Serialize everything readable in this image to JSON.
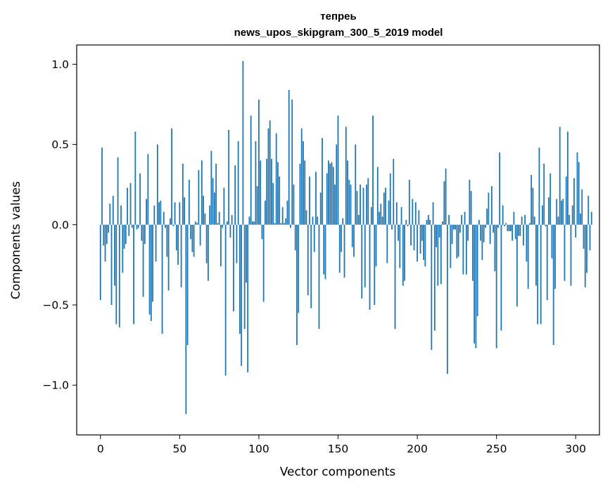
{
  "chart_data": {
    "type": "bar",
    "title_line1": "тепрeь",
    "title_line2": "news_upos_skipgram_300_5_2019 model",
    "xlabel": "Vector components",
    "ylabel": "Components values",
    "xlim": [
      -15,
      315
    ],
    "ylim": [
      -1.31,
      1.12
    ],
    "x_ticks": [
      0,
      50,
      100,
      150,
      200,
      250,
      300
    ],
    "y_ticks": [
      1.0,
      0.5,
      0.0,
      -0.5,
      -1.0
    ],
    "x_tick_labels": [
      "0",
      "50",
      "100",
      "150",
      "200",
      "250",
      "300"
    ],
    "y_tick_labels": [
      "1.0",
      "0.5",
      "0.0",
      "−0.5",
      "−1.0"
    ],
    "bar_color": "#1f77b4",
    "grid": false,
    "values": [
      -0.47,
      0.48,
      -0.13,
      -0.23,
      -0.12,
      -0.05,
      0.13,
      -0.5,
      0.18,
      -0.38,
      -0.62,
      0.42,
      -0.64,
      0.12,
      -0.3,
      -0.15,
      -0.12,
      0.23,
      -0.07,
      0.26,
      -0.02,
      -0.62,
      0.58,
      -0.03,
      -0.02,
      0.32,
      -0.1,
      -0.45,
      -0.12,
      0.16,
      0.44,
      -0.56,
      -0.6,
      -0.48,
      0.12,
      -0.23,
      0.5,
      0.14,
      0.15,
      -0.68,
      0.08,
      -0.02,
      -0.2,
      -0.41,
      0.04,
      0.6,
      -0.01,
      0.14,
      -0.16,
      -0.25,
      0.14,
      -0.39,
      0.38,
      0.17,
      -1.18,
      -0.75,
      0.28,
      -0.09,
      -0.17,
      -0.2,
      0.02,
      0.01,
      0.34,
      -0.13,
      0.4,
      0.18,
      0.07,
      -0.24,
      -0.35,
      0.12,
      0.46,
      0.29,
      0.2,
      0.38,
      0.01,
      0.08,
      -0.26,
      -0.02,
      0.23,
      -0.94,
      0.02,
      0.59,
      -0.08,
      0.06,
      -0.54,
      0.37,
      -0.24,
      0.52,
      -0.68,
      -0.88,
      1.02,
      -0.65,
      -0.36,
      -0.92,
      0.05,
      0.68,
      0.02,
      0.02,
      0.52,
      0.24,
      0.78,
      0.4,
      -0.09,
      -0.48,
      0.15,
      0.41,
      0.6,
      0.65,
      0.41,
      0.26,
      0.01,
      0.57,
      0.39,
      0.3,
      0.01,
      0.11,
      0.01,
      0.04,
      0.15,
      0.84,
      -0.02,
      0.78,
      0.25,
      -0.16,
      -0.75,
      -0.55,
      0.38,
      0.6,
      0.52,
      0.4,
      0.09,
      -0.44,
      0.3,
      -0.52,
      0.05,
      -0.17,
      0.33,
      0.05,
      -0.65,
      0.2,
      0.54,
      -0.31,
      -0.34,
      0.32,
      0.4,
      0.38,
      0.39,
      0.36,
      0.25,
      0.5,
      0.68,
      -0.3,
      -0.17,
      0.04,
      -0.33,
      0.61,
      0.4,
      0.28,
      0.25,
      -0.14,
      -0.2,
      0.5,
      0.21,
      0.06,
      0.25,
      -0.46,
      0.23,
      -0.39,
      0.25,
      0.29,
      -0.53,
      0.11,
      0.68,
      -0.5,
      -0.26,
      0.36,
      0.08,
      0.13,
      0.05,
      0.2,
      0.23,
      -0.24,
      0.15,
      0.32,
      -0.03,
      0.41,
      -0.65,
      0.14,
      -0.1,
      -0.27,
      0.11,
      -0.38,
      -0.35,
      0.03,
      -0.01,
      0.28,
      -0.13,
      0.16,
      -0.16,
      0.14,
      -0.23,
      0.09,
      -0.18,
      -0.1,
      -0.22,
      -0.26,
      0.03,
      0.06,
      0.03,
      -0.78,
      0.14,
      -0.66,
      -0.14,
      -0.38,
      -0.08,
      -0.37,
      0.02,
      0.27,
      0.35,
      -0.93,
      0.06,
      -0.27,
      -0.12,
      -0.03,
      -0.03,
      -0.21,
      -0.2,
      -0.05,
      0.06,
      -0.31,
      0.08,
      -0.31,
      -0.1,
      0.28,
      0.21,
      -0.35,
      -0.74,
      -0.77,
      -0.57,
      0.03,
      -0.1,
      -0.22,
      -0.11,
      -0.02,
      0.1,
      0.2,
      -0.12,
      0.24,
      -0.05,
      -0.29,
      -0.77,
      -0.02,
      0.45,
      -0.66,
      0.12,
      -0.01,
      0.01,
      -0.04,
      -0.04,
      -0.04,
      -0.1,
      0.08,
      -0.09,
      -0.51,
      -0.07,
      -0.07,
      0.05,
      -0.13,
      0.06,
      -0.23,
      -0.4,
      0.01,
      0.31,
      0.23,
      0.05,
      -0.38,
      -0.62,
      0.48,
      -0.62,
      0.12,
      0.38,
      -0.01,
      -0.47,
      0.17,
      0.32,
      -0.21,
      -0.75,
      -0.4,
      0.16,
      0.05,
      0.61,
      0.15,
      0.16,
      -0.35,
      0.3,
      0.58,
      0.06,
      -0.38,
      0.12,
      0.29,
      -0.08,
      0.45,
      0.39,
      0.07,
      0.22,
      -0.15,
      -0.39,
      -0.3,
      0.18,
      -0.16,
      0.08
    ]
  }
}
